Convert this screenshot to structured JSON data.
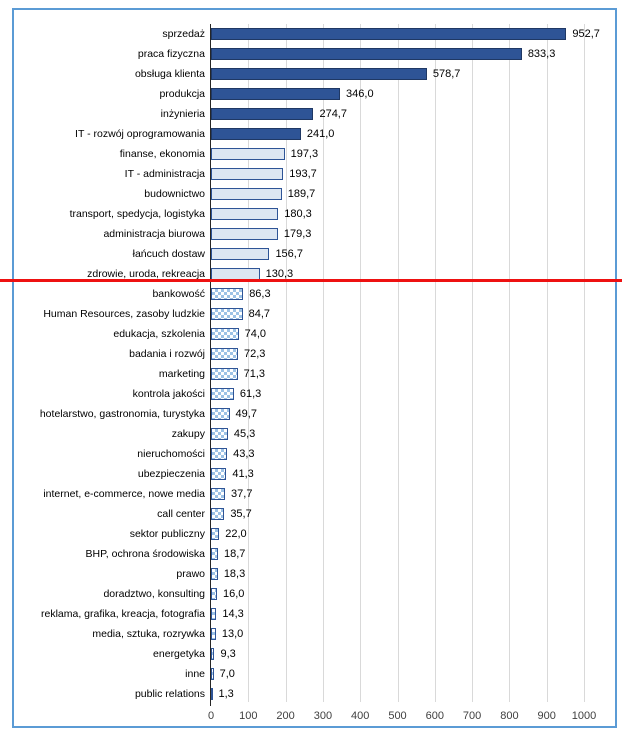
{
  "chart_data": {
    "type": "bar",
    "orientation": "horizontal",
    "title": "",
    "xlabel": "",
    "ylabel": "",
    "xlim": [
      0,
      1000
    ],
    "grid": true,
    "x_ticks": [
      0,
      100,
      200,
      300,
      400,
      500,
      600,
      700,
      800,
      900,
      1000
    ],
    "x_tick_labels": [
      "0",
      "100",
      "200",
      "300",
      "400",
      "500",
      "600",
      "700",
      "800",
      "900",
      "1000"
    ],
    "bars": [
      {
        "label": "sprzedaż",
        "value": 952.7,
        "display": "952,7",
        "style": "dark"
      },
      {
        "label": "praca fizyczna",
        "value": 833.3,
        "display": "833,3",
        "style": "dark"
      },
      {
        "label": "obsługa klienta",
        "value": 578.7,
        "display": "578,7",
        "style": "dark"
      },
      {
        "label": "produkcja",
        "value": 346.0,
        "display": "346,0",
        "style": "dark"
      },
      {
        "label": "inżynieria",
        "value": 274.7,
        "display": "274,7",
        "style": "dark"
      },
      {
        "label": "IT - rozwój oprogramowania",
        "value": 241.0,
        "display": "241,0",
        "style": "dark"
      },
      {
        "label": "finanse, ekonomia",
        "value": 197.3,
        "display": "197,3",
        "style": "light"
      },
      {
        "label": "IT - administracja",
        "value": 193.7,
        "display": "193,7",
        "style": "light"
      },
      {
        "label": "budownictwo",
        "value": 189.7,
        "display": "189,7",
        "style": "light"
      },
      {
        "label": "transport, spedycja, logistyka",
        "value": 180.3,
        "display": "180,3",
        "style": "light"
      },
      {
        "label": "administracja biurowa",
        "value": 179.3,
        "display": "179,3",
        "style": "light"
      },
      {
        "label": "łańcuch dostaw",
        "value": 156.7,
        "display": "156,7",
        "style": "light"
      },
      {
        "label": "zdrowie, uroda, rekreacja",
        "value": 130.3,
        "display": "130,3",
        "style": "light"
      },
      {
        "label": "bankowość",
        "value": 86.3,
        "display": "86,3",
        "style": "pattern"
      },
      {
        "label": "Human Resources, zasoby ludzkie",
        "value": 84.7,
        "display": "84,7",
        "style": "pattern"
      },
      {
        "label": "edukacja, szkolenia",
        "value": 74.0,
        "display": "74,0",
        "style": "pattern"
      },
      {
        "label": "badania i rozwój",
        "value": 72.3,
        "display": "72,3",
        "style": "pattern"
      },
      {
        "label": "marketing",
        "value": 71.3,
        "display": "71,3",
        "style": "pattern"
      },
      {
        "label": "kontrola jakości",
        "value": 61.3,
        "display": "61,3",
        "style": "pattern"
      },
      {
        "label": "hotelarstwo, gastronomia, turystyka",
        "value": 49.7,
        "display": "49,7",
        "style": "pattern"
      },
      {
        "label": "zakupy",
        "value": 45.3,
        "display": "45,3",
        "style": "pattern"
      },
      {
        "label": "nieruchomości",
        "value": 43.3,
        "display": "43,3",
        "style": "pattern"
      },
      {
        "label": "ubezpieczenia",
        "value": 41.3,
        "display": "41,3",
        "style": "pattern"
      },
      {
        "label": "internet, e-commerce, nowe media",
        "value": 37.7,
        "display": "37,7",
        "style": "pattern"
      },
      {
        "label": "call center",
        "value": 35.7,
        "display": "35,7",
        "style": "pattern"
      },
      {
        "label": "sektor publiczny",
        "value": 22.0,
        "display": "22,0",
        "style": "pattern"
      },
      {
        "label": "BHP, ochrona środowiska",
        "value": 18.7,
        "display": "18,7",
        "style": "pattern"
      },
      {
        "label": "prawo",
        "value": 18.3,
        "display": "18,3",
        "style": "pattern"
      },
      {
        "label": "doradztwo, konsulting",
        "value": 16.0,
        "display": "16,0",
        "style": "pattern"
      },
      {
        "label": "reklama, grafika, kreacja, fotografia",
        "value": 14.3,
        "display": "14,3",
        "style": "pattern"
      },
      {
        "label": "media, sztuka, rozrywka",
        "value": 13.0,
        "display": "13,0",
        "style": "pattern"
      },
      {
        "label": "energetyka",
        "value": 9.3,
        "display": "9,3",
        "style": "pattern"
      },
      {
        "label": "inne",
        "value": 7.0,
        "display": "7,0",
        "style": "pattern"
      },
      {
        "label": "public relations",
        "value": 1.3,
        "display": "1,3",
        "style": "pattern"
      }
    ],
    "annotation": {
      "divider_line": {
        "after_category": "zdrowie, uroda, rekreacja",
        "color": "#EE1111"
      }
    }
  },
  "colors": {
    "frame_border": "#5B9BD5",
    "bar_dark_fill": "#2E5496",
    "bar_dark_border": "#1F3864",
    "bar_light_fill": "#DCE6F2",
    "pattern_fill": "#9DC3E6",
    "gridline": "#D9D9D9",
    "axis_line": "#262626",
    "divider_red": "#EE1111",
    "text": "#000000"
  }
}
